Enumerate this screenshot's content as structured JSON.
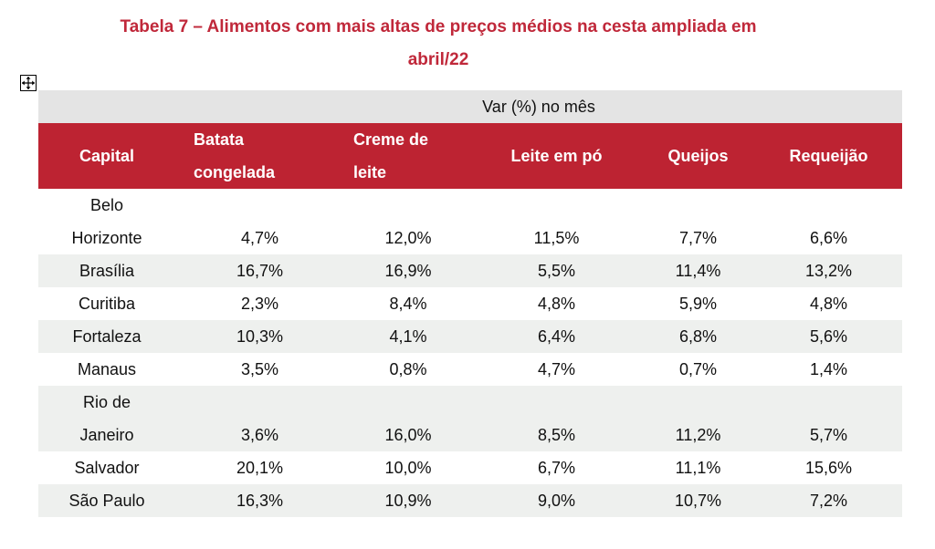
{
  "title": {
    "line1": "Tabela 7 – Alimentos com mais altas de preços médios na cesta ampliada em",
    "line2": "abril/22"
  },
  "table": {
    "var_label": "Var (%) no mês",
    "headers": {
      "capital": "Capital",
      "batata_1": "Batata",
      "batata_2": "congelada",
      "creme_1": "Creme de",
      "creme_2": "leite",
      "leite": "Leite em pó",
      "queijos": "Queijos",
      "requeijao": "Requeijão"
    },
    "rows": [
      {
        "city_1": "Belo",
        "city_2": "Horizonte",
        "batata": "4,7%",
        "creme": "12,0%",
        "leite": "11,5%",
        "queijos": "7,7%",
        "requeijao": "6,6%"
      },
      {
        "city_1": "Brasília",
        "batata": "16,7%",
        "creme": "16,9%",
        "leite": "5,5%",
        "queijos": "11,4%",
        "requeijao": "13,2%"
      },
      {
        "city_1": "Curitiba",
        "batata": "2,3%",
        "creme": "8,4%",
        "leite": "4,8%",
        "queijos": "5,9%",
        "requeijao": "4,8%"
      },
      {
        "city_1": "Fortaleza",
        "batata": "10,3%",
        "creme": "4,1%",
        "leite": "6,4%",
        "queijos": "6,8%",
        "requeijao": "5,6%"
      },
      {
        "city_1": "Manaus",
        "batata": "3,5%",
        "creme": "0,8%",
        "leite": "4,7%",
        "queijos": "0,7%",
        "requeijao": "1,4%"
      },
      {
        "city_1": "Rio de",
        "city_2": "Janeiro",
        "batata": "3,6%",
        "creme": "16,0%",
        "leite": "8,5%",
        "queijos": "11,2%",
        "requeijao": "5,7%"
      },
      {
        "city_1": "Salvador",
        "batata": "20,1%",
        "creme": "10,0%",
        "leite": "6,7%",
        "queijos": "11,1%",
        "requeijao": "15,6%"
      },
      {
        "city_1": "São Paulo",
        "batata": "16,3%",
        "creme": "10,9%",
        "leite": "9,0%",
        "queijos": "10,7%",
        "requeijao": "7,2%"
      }
    ]
  },
  "colors": {
    "title": "#c0283a",
    "header_bg": "#bd2332",
    "var_bg": "#e4e4e4",
    "stripe_bg": "#eef0ee"
  },
  "icons": {
    "move_handle": "move-arrows-icon"
  }
}
